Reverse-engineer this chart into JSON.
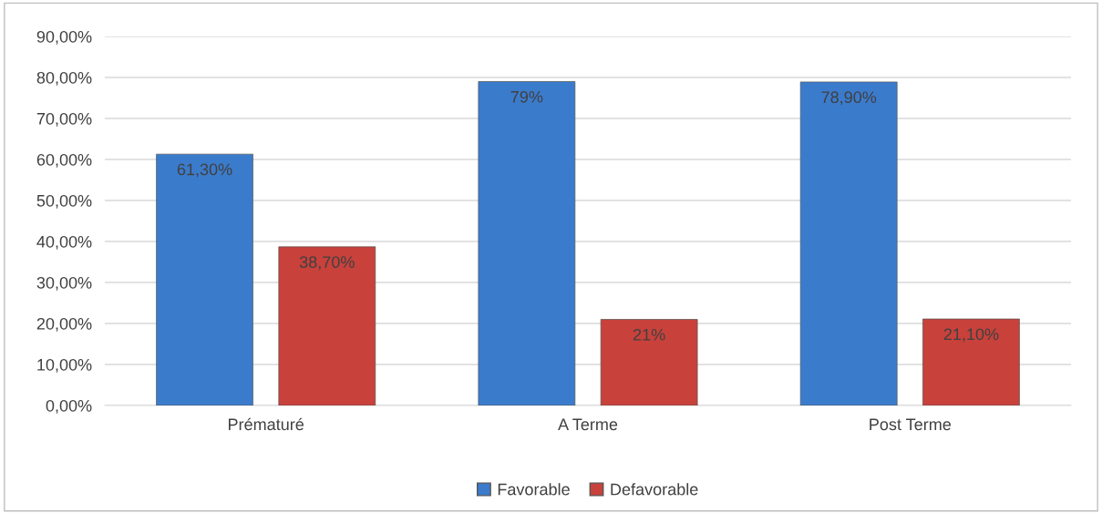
{
  "chart_data": {
    "type": "bar",
    "categories": [
      "Prématuré",
      "A Terme",
      "Post Terme"
    ],
    "series": [
      {
        "name": "Favorable",
        "color": "#3b7bcc",
        "values": [
          61.3,
          79,
          78.9
        ],
        "value_labels": [
          "61,30%",
          "79%",
          "78,90%"
        ]
      },
      {
        "name": "Defavorable",
        "color": "#c8413b",
        "values": [
          38.7,
          21,
          21.1
        ],
        "value_labels": [
          "38,70%",
          "21%",
          "21,10%"
        ]
      }
    ],
    "ylim": [
      0,
      90
    ],
    "yticks": [
      {
        "value": 0,
        "label": "0,00%"
      },
      {
        "value": 10,
        "label": "10,00%"
      },
      {
        "value": 20,
        "label": "20,00%"
      },
      {
        "value": 30,
        "label": "30,00%"
      },
      {
        "value": 40,
        "label": "40,00%"
      },
      {
        "value": 50,
        "label": "50,00%"
      },
      {
        "value": 60,
        "label": "60,00%"
      },
      {
        "value": 70,
        "label": "70,00%"
      },
      {
        "value": 80,
        "label": "80,00%"
      },
      {
        "value": 90,
        "label": "90,00%"
      }
    ],
    "grid": "y",
    "legend": "bottom"
  }
}
